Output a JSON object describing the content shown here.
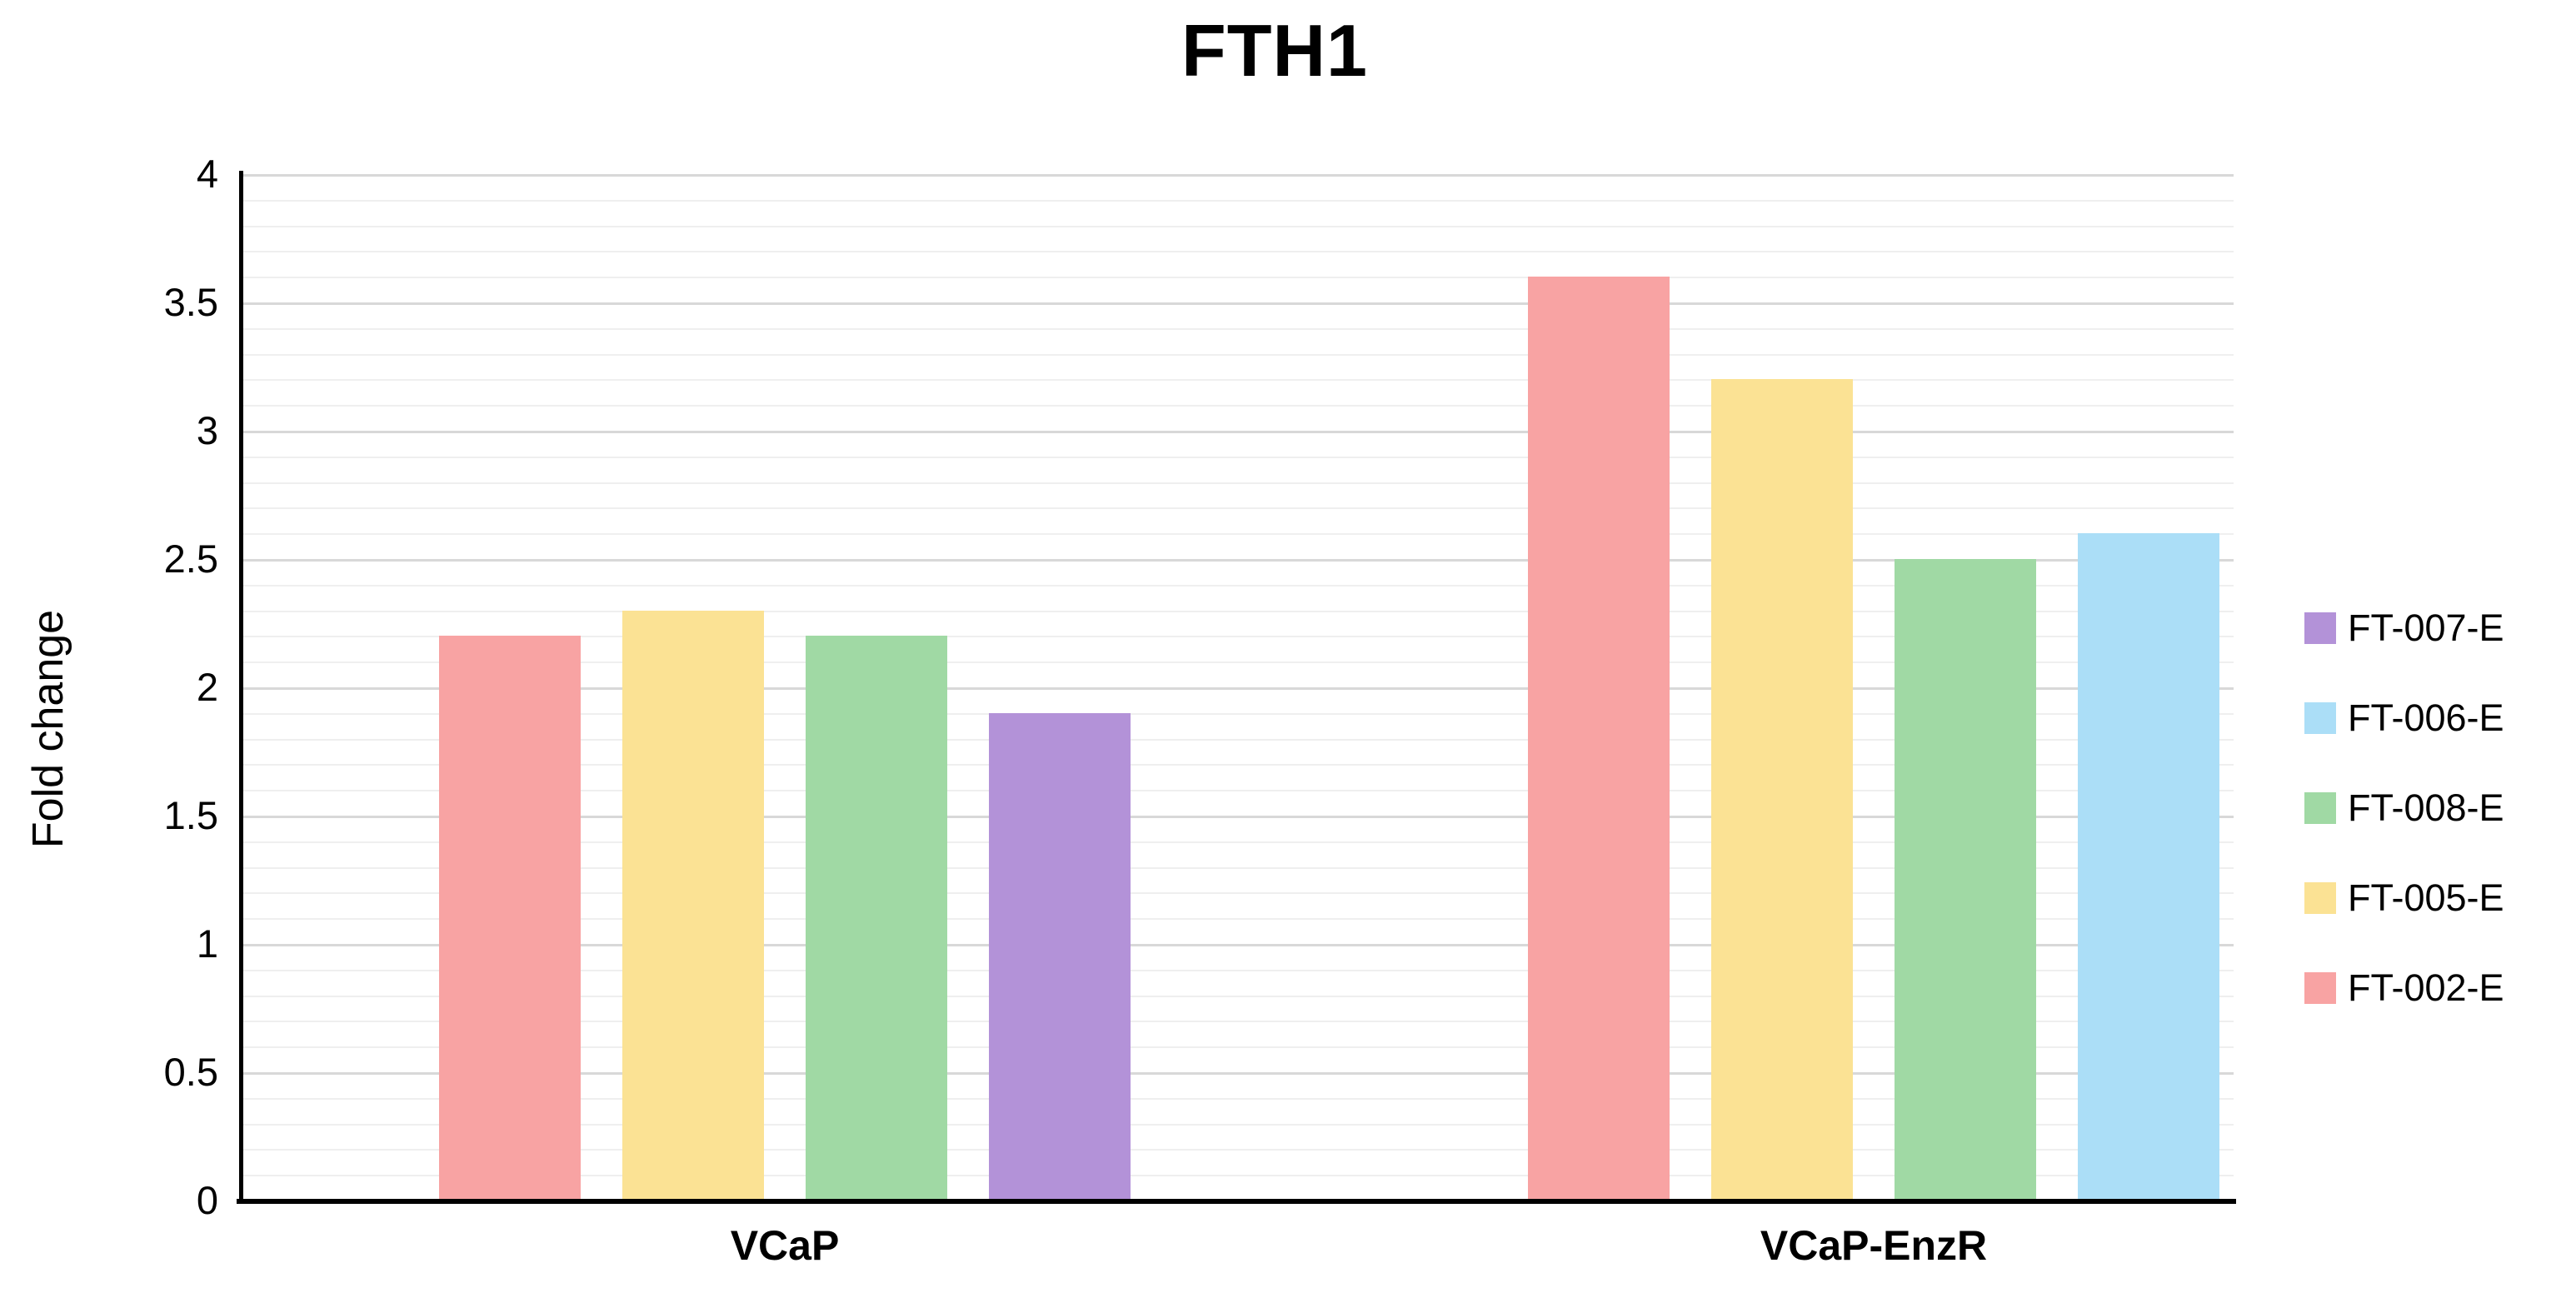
{
  "chart_data": {
    "type": "bar",
    "title": "FTH1",
    "ylabel": "Fold change",
    "xlabel": "",
    "ylim": [
      0,
      4
    ],
    "yticks": [
      4,
      3.5,
      3,
      2.5,
      2,
      1.5,
      1,
      0.5,
      0
    ],
    "major_grid_step": 0.5,
    "minor_grid_step": 0.1,
    "grid": true,
    "legend_position": "right",
    "categories": [
      "VCaP",
      "VCaP-EnzR"
    ],
    "series": [
      {
        "name": "FT-002-E",
        "color": "#F8A3A3",
        "values": [
          2.2,
          3.6
        ]
      },
      {
        "name": "FT-005-E",
        "color": "#FBE294",
        "values": [
          2.3,
          3.2
        ]
      },
      {
        "name": "FT-008-E",
        "color": "#A0D9A4",
        "values": [
          2.2,
          2.5
        ]
      },
      {
        "name": "FT-007-E",
        "color": "#B392D8",
        "values": [
          1.9,
          null
        ]
      },
      {
        "name": "FT-006-E",
        "color": "#ABDEF7",
        "values": [
          null,
          2.6
        ]
      }
    ],
    "legend_order": [
      "FT-007-E",
      "FT-006-E",
      "FT-008-E",
      "FT-005-E",
      "FT-002-E"
    ],
    "colors": {
      "major_gridline": "#D8D8D8",
      "minor_gridline": "#EFEFEF",
      "axis_line": "#000000",
      "text": "#000000",
      "background": "#FFFFFF"
    }
  }
}
